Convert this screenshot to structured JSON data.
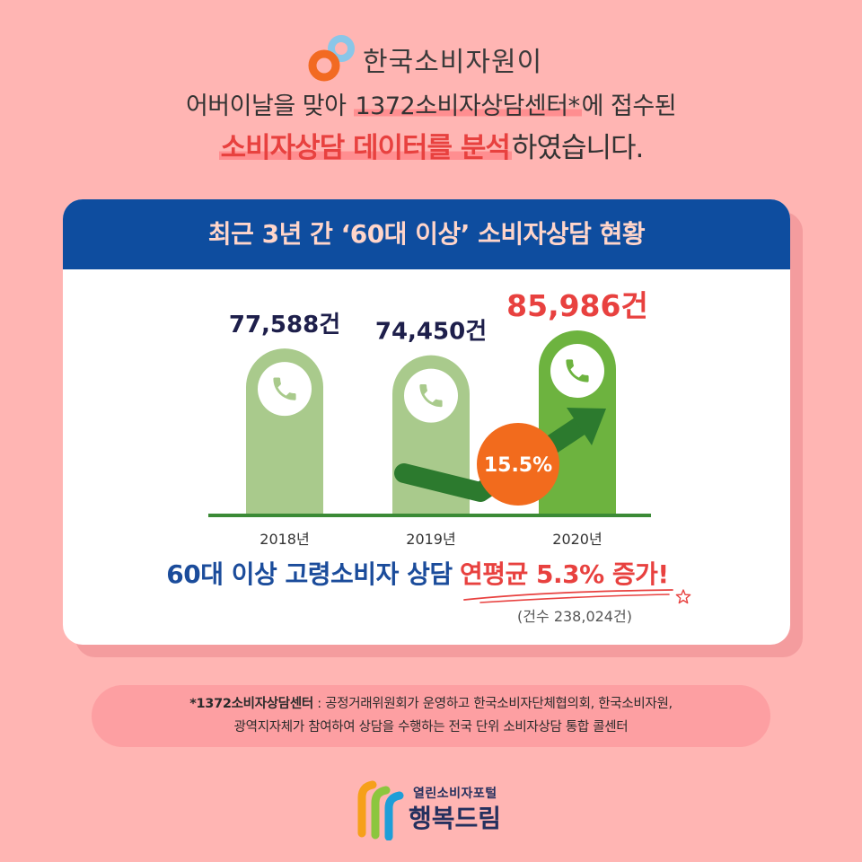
{
  "brand": {
    "org_name": "한국소비자원이",
    "logo_icon": "kca-logo-icon"
  },
  "headline": {
    "line2_prefix": "어버이날을 맞아 ",
    "line2_highlight": "1372소비자상담센터*",
    "line2_suffix": "에 접수된",
    "line3_highlight": "소비자상담 데이터를 분석",
    "line3_suffix": "하였습니다."
  },
  "chart_data": {
    "type": "bar",
    "title": "최근 3년 간 ‘60대 이상’ 소비자상담 현황",
    "categories": [
      "2018년",
      "2019년",
      "2020년"
    ],
    "values": [
      77588,
      74450,
      85986
    ],
    "value_labels": [
      "77,588건",
      "74,450건",
      "85,986건"
    ],
    "annotation": "15.5%",
    "bar_colors": [
      "#A9CA8C",
      "#A9CA8C",
      "#6DB33F"
    ],
    "label_colors": [
      "#1E1F4B",
      "#1E1F4B",
      "#E8413F"
    ],
    "bar_icon": "phone-icon",
    "grid": false
  },
  "summary": {
    "lead": "60대 이상 고령소비자 상담",
    "highlight": "연평균 5.3% 증가!",
    "note": "(건수 238,024건)"
  },
  "footnote": {
    "term": "*1372소비자상담센터",
    "line1": " : 공정거래위원회가 운영하고 한국소비자단체협의회, 한국소비자원,",
    "line2": "광역지자체가 참여하여 상담을 수행하는 전국 단위 소비자상담 통합 콜센터"
  },
  "footer_logo": {
    "tagline": "열린소비자포털",
    "name": "행복드림",
    "icon": "happydream-logo-icon"
  },
  "colors": {
    "background": "#FFB5B3",
    "card_shadow": "#F49C9E",
    "card_header": "#0E4D9F",
    "card_title": "#FFD5CA",
    "accent_red": "#E8413F",
    "accent_blue": "#1B4C9B",
    "navy_text": "#24305E",
    "highlight_pink": "#FF8E90",
    "growth_badge": "#F26B1D",
    "growth_arrow": "#2C7A2E",
    "baseline": "#3B8A36",
    "footnote_bg": "#FD9FA2",
    "kca_logo_orange": "#F26A22",
    "kca_logo_sky": "#8AC6E8",
    "portal_logo_orange": "#F6A01A",
    "portal_logo_green": "#8CC63E",
    "portal_logo_blue": "#1E9ED8"
  }
}
